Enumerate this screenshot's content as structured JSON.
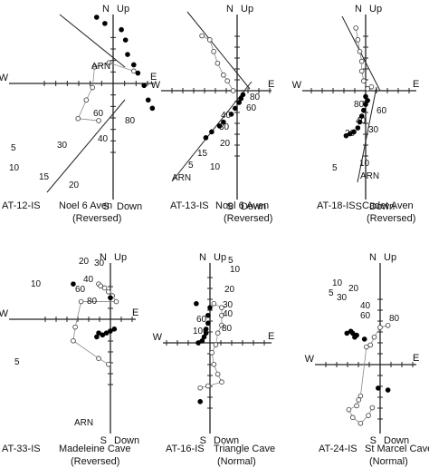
{
  "figure": {
    "panels": [
      {
        "id": "AT-12-IS",
        "site": "Noel 6 Aven",
        "polarity": "(Reversed)",
        "axes": {
          "n": "N",
          "s": "S",
          "e": "E",
          "w": "W",
          "up": "Up",
          "down": "Down"
        },
        "step_labels": [
          "ARN",
          "60",
          "80",
          "30",
          "40",
          "5",
          "10",
          "15",
          "20"
        ],
        "horizontal": [
          [
            0.5,
            -0.3
          ],
          [
            -0.1,
            -0.5
          ],
          [
            -0.45,
            -0.4
          ],
          [
            -0.5,
            0.1
          ],
          [
            -0.65,
            0.4
          ],
          [
            -0.85,
            0.85
          ],
          [
            -0.35,
            0.9
          ]
        ],
        "vertical": [
          [
            -0.4,
            -1.6
          ],
          [
            -0.2,
            -1.45
          ],
          [
            0.2,
            -1.3
          ],
          [
            0.3,
            -1.05
          ],
          [
            0.35,
            -0.7
          ],
          [
            0.5,
            -0.45
          ],
          [
            0.6,
            -0.25
          ],
          [
            0.75,
            0.05
          ],
          [
            0.85,
            0.4
          ],
          [
            0.95,
            0.6
          ]
        ]
      },
      {
        "id": "AT-13-IS",
        "site": "Noel 6 Aven",
        "polarity": "(Reversed)",
        "axes": {
          "n": "N",
          "s": "S",
          "e": "E",
          "w": "W",
          "up": "Up",
          "down": "Down"
        },
        "step_labels": [
          "80",
          "60",
          "40",
          "30",
          "20",
          "15",
          "10",
          "5",
          "ARN"
        ],
        "horizontal": [
          [
            -0.9,
            -1.4
          ],
          [
            -0.7,
            -1.3
          ],
          [
            -0.6,
            -1.0
          ],
          [
            -0.5,
            -0.7
          ],
          [
            -0.35,
            -0.4
          ],
          [
            -0.25,
            -0.25
          ],
          [
            -0.1,
            0.0
          ]
        ],
        "vertical": [
          [
            0.15,
            0.1
          ],
          [
            0.1,
            0.2
          ],
          [
            0.05,
            0.3
          ],
          [
            -0.05,
            0.45
          ],
          [
            -0.15,
            0.6
          ],
          [
            -0.35,
            0.8
          ],
          [
            -0.45,
            0.9
          ],
          [
            -0.65,
            1.05
          ],
          [
            -0.8,
            1.2
          ]
        ]
      },
      {
        "id": "AT-18-IS",
        "site": "Cadet Aven",
        "polarity": "(Reversed)",
        "axes": {
          "n": "N",
          "s": "S",
          "e": "E",
          "w": "W",
          "up": "Up",
          "down": "Down"
        },
        "step_labels": [
          "80",
          "60",
          "40",
          "30",
          "20",
          "10",
          "5",
          "ARN"
        ],
        "horizontal": [
          [
            -0.25,
            -1.6
          ],
          [
            -0.2,
            -1.3
          ],
          [
            -0.15,
            -1.0
          ],
          [
            -0.1,
            -0.75
          ],
          [
            -0.1,
            -0.5
          ],
          [
            -0.05,
            -0.25
          ],
          [
            0.05,
            -0.05
          ],
          [
            0.15,
            -0.1
          ]
        ],
        "vertical": [
          [
            0.0,
            0.15
          ],
          [
            0.05,
            0.25
          ],
          [
            0.0,
            0.35
          ],
          [
            -0.05,
            0.5
          ],
          [
            -0.1,
            0.65
          ],
          [
            -0.15,
            0.8
          ],
          [
            -0.2,
            0.95
          ],
          [
            -0.3,
            1.05
          ],
          [
            -0.4,
            1.1
          ],
          [
            -0.5,
            1.15
          ]
        ]
      },
      {
        "id": "AT-33-IS",
        "site": "Madeleine Cave",
        "polarity": "(Reversed)",
        "axes": {
          "n": "N",
          "s": "S",
          "e": "E",
          "w": "W",
          "up": "Up",
          "down": "Down"
        },
        "step_labels": [
          "20",
          "30",
          "10",
          "40",
          "60",
          "80",
          "5",
          "ARN"
        ],
        "horizontal": [
          [
            -0.3,
            -0.9
          ],
          [
            -0.25,
            -0.85
          ],
          [
            -0.15,
            -0.8
          ],
          [
            -0.05,
            -0.7
          ],
          [
            0.05,
            -0.6
          ],
          [
            0.15,
            -0.45
          ],
          [
            -0.75,
            -0.45
          ],
          [
            -0.9,
            0.2
          ],
          [
            -0.95,
            0.55
          ],
          [
            -0.3,
            1.0
          ],
          [
            -0.05,
            1.15
          ]
        ],
        "vertical": [
          [
            -0.95,
            -0.9
          ],
          [
            0.0,
            -0.55
          ],
          [
            -0.3,
            0.35
          ],
          [
            -0.35,
            0.45
          ],
          [
            -0.2,
            0.4
          ],
          [
            -0.1,
            0.35
          ],
          [
            0.0,
            0.3
          ],
          [
            0.1,
            0.25
          ]
        ]
      },
      {
        "id": "AT-16-IS",
        "site": "Triangle Cave",
        "polarity": "(Normal)",
        "axes": {
          "n": "N",
          "s": "S",
          "e": "E",
          "w": "W",
          "up": "Up",
          "down": "Down"
        },
        "step_labels": [
          "5",
          "10",
          "20",
          "30",
          "40",
          "60",
          "100",
          "80"
        ],
        "horizontal": [
          [
            0.1,
            -1.0
          ],
          [
            0.3,
            -0.9
          ],
          [
            0.3,
            -0.7
          ],
          [
            0.3,
            -0.45
          ],
          [
            0.2,
            -0.25
          ],
          [
            0.15,
            0.05
          ],
          [
            0.05,
            0.25
          ],
          [
            0.1,
            0.55
          ],
          [
            0.2,
            0.8
          ],
          [
            0.3,
            1.0
          ],
          [
            -0.05,
            1.1
          ],
          [
            -0.25,
            1.15
          ]
        ],
        "vertical": [
          [
            -0.35,
            -1.0
          ],
          [
            0.0,
            -0.9
          ],
          [
            -0.05,
            -0.7
          ],
          [
            -0.05,
            -0.5
          ],
          [
            -0.1,
            -0.35
          ],
          [
            -0.1,
            -0.25
          ],
          [
            -0.15,
            -0.15
          ],
          [
            -0.2,
            -0.05
          ],
          [
            -0.3,
            0.0
          ],
          [
            -0.25,
            1.5
          ]
        ]
      },
      {
        "id": "AT-24-IS",
        "site": "St Marcel Cave",
        "polarity": "(Normal)",
        "axes": {
          "n": "N",
          "s": "S",
          "e": "E",
          "w": "W",
          "up": "Up",
          "down": "Down"
        },
        "step_labels": [
          "10",
          "5",
          "30",
          "20",
          "40",
          "60",
          "80"
        ],
        "horizontal": [
          [
            0.2,
            -1.0
          ],
          [
            0.0,
            -0.95
          ],
          [
            -0.15,
            -0.7
          ],
          [
            -0.25,
            -0.5
          ],
          [
            -0.35,
            -0.45
          ],
          [
            -0.5,
            0.8
          ],
          [
            -0.55,
            0.9
          ],
          [
            -0.6,
            1.05
          ],
          [
            -0.8,
            1.15
          ],
          [
            -0.7,
            1.35
          ],
          [
            -0.5,
            1.5
          ],
          [
            -0.3,
            1.3
          ],
          [
            -0.2,
            1.1
          ]
        ],
        "vertical": [
          [
            -0.85,
            -0.8
          ],
          [
            -0.75,
            -0.85
          ],
          [
            -0.7,
            -0.8
          ],
          [
            -0.6,
            -0.75
          ],
          [
            -0.65,
            -0.7
          ],
          [
            -0.4,
            -0.65
          ],
          [
            -0.05,
            0.6
          ],
          [
            0.2,
            0.65
          ]
        ]
      }
    ]
  }
}
